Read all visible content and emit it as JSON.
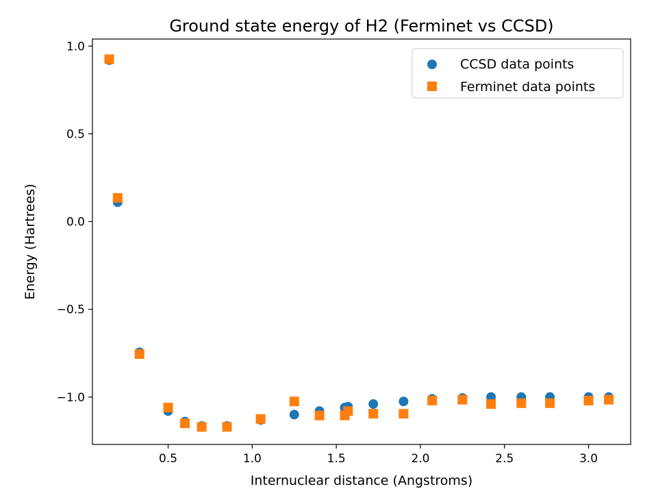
{
  "chart_data": {
    "type": "scatter",
    "title": "Ground state energy of H2 (Ferminet vs CCSD)",
    "xlabel": "Internuclear distance (Angstroms)",
    "ylabel": "Energy (Hartrees)",
    "xlim": [
      0.05,
      3.25
    ],
    "ylim": [
      -1.27,
      1.04
    ],
    "xticks": [
      0.5,
      1.0,
      1.5,
      2.0,
      2.5,
      3.0
    ],
    "xtick_labels": [
      "0.5",
      "1.0",
      "1.5",
      "2.0",
      "2.5",
      "3.0"
    ],
    "yticks": [
      1.0,
      0.5,
      0.0,
      -0.5,
      -1.0
    ],
    "ytick_labels": [
      "1.0",
      "0.5",
      "0.0",
      "−0.5",
      "−1.0"
    ],
    "grid": false,
    "legend_position": "top-right",
    "series": [
      {
        "name": "CCSD data points",
        "marker": "circle",
        "color": "#1f77b4",
        "x": [
          0.15,
          0.2,
          0.33,
          0.5,
          0.6,
          0.7,
          0.85,
          1.05,
          1.25,
          1.4,
          1.55,
          1.57,
          1.72,
          1.9,
          2.07,
          2.25,
          2.42,
          2.6,
          2.77,
          3.0,
          3.12
        ],
        "y": [
          0.92,
          0.11,
          -0.745,
          -1.08,
          -1.14,
          -1.165,
          -1.165,
          -1.13,
          -1.1,
          -1.08,
          -1.06,
          -1.055,
          -1.04,
          -1.025,
          -1.01,
          -1.005,
          -1.0,
          -1.0,
          -1.0,
          -1.0,
          -1.0
        ]
      },
      {
        "name": "Ferminet data points",
        "marker": "square",
        "color": "#ff7f0e",
        "x": [
          0.15,
          0.2,
          0.33,
          0.5,
          0.6,
          0.7,
          0.85,
          1.05,
          1.25,
          1.4,
          1.55,
          1.57,
          1.72,
          1.9,
          2.07,
          2.25,
          2.42,
          2.6,
          2.77,
          3.0,
          3.12
        ],
        "y": [
          0.925,
          0.135,
          -0.755,
          -1.06,
          -1.15,
          -1.17,
          -1.17,
          -1.125,
          -1.025,
          -1.105,
          -1.105,
          -1.08,
          -1.095,
          -1.095,
          -1.02,
          -1.015,
          -1.04,
          -1.035,
          -1.035,
          -1.02,
          -1.015
        ]
      }
    ]
  }
}
